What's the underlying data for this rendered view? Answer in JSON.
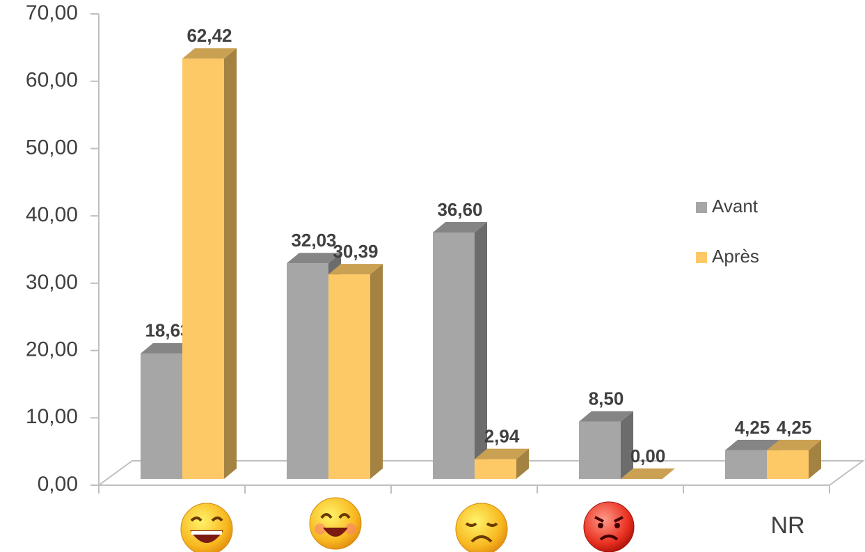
{
  "chart_data": {
    "type": "bar3d",
    "categories": [
      null,
      null,
      null,
      null,
      "NR"
    ],
    "series": [
      {
        "name": "Avant",
        "color": "#a6a6a6",
        "values": [
          18.63,
          32.03,
          36.6,
          8.5,
          4.25
        ],
        "value_labels": [
          "18,63",
          "32,03",
          "36,60",
          "8,50",
          "4,25"
        ]
      },
      {
        "name": "Après",
        "color": "#fdc966",
        "values": [
          62.42,
          30.39,
          2.94,
          0.0,
          4.25
        ],
        "value_labels": [
          "62,42",
          "30,39",
          "2,94",
          "0,00",
          "4,25"
        ]
      }
    ],
    "ylim": [
      0,
      70
    ],
    "yticks": [
      {
        "value": 0,
        "label": "0,00"
      },
      {
        "value": 10,
        "label": "10,00"
      },
      {
        "value": 20,
        "label": "20,00"
      },
      {
        "value": 30,
        "label": "30,00"
      },
      {
        "value": 40,
        "label": "40,00"
      },
      {
        "value": 50,
        "label": "50,00"
      },
      {
        "value": 60,
        "label": "60,00"
      },
      {
        "value": 70,
        "label": "70,00"
      }
    ],
    "legend": "right"
  }
}
